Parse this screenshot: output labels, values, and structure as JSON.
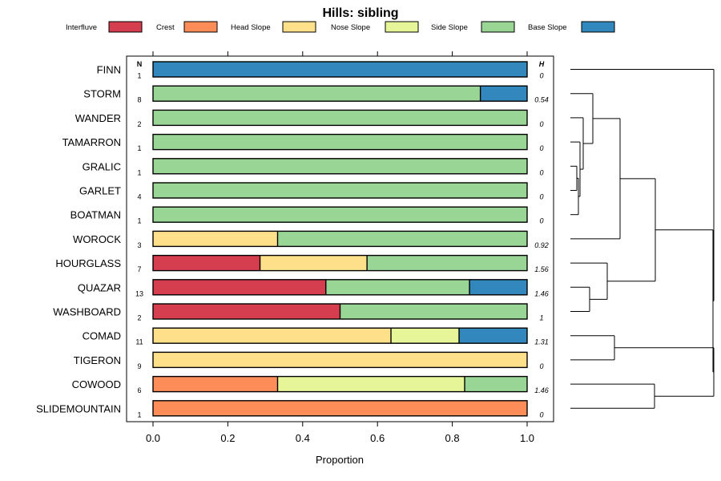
{
  "chart_data": {
    "type": "bar",
    "orientation": "horizontal",
    "stacked": true,
    "title": "Hills: sibling",
    "xlabel": "Proportion",
    "xlim": [
      0,
      1
    ],
    "x_ticks": [
      "0.0",
      "0.2",
      "0.4",
      "0.6",
      "0.8",
      "1.0"
    ],
    "n_header": "N",
    "h_header": "H",
    "legend": [
      {
        "name": "Interfluve",
        "color": "#d53e4f"
      },
      {
        "name": "Crest",
        "color": "#fc8d59"
      },
      {
        "name": "Head Slope",
        "color": "#fee08b"
      },
      {
        "name": "Nose Slope",
        "color": "#e6f598"
      },
      {
        "name": "Side Slope",
        "color": "#99d594"
      },
      {
        "name": "Base Slope",
        "color": "#3288bd"
      }
    ],
    "rows": [
      {
        "label": "FINN",
        "n": "1",
        "h": "0",
        "values": [
          0,
          0,
          0,
          0,
          0,
          1
        ]
      },
      {
        "label": "STORM",
        "n": "8",
        "h": "0.54",
        "values": [
          0,
          0,
          0,
          0,
          0.875,
          0.125
        ]
      },
      {
        "label": "WANDER",
        "n": "2",
        "h": "0",
        "values": [
          0,
          0,
          0,
          0,
          1,
          0
        ]
      },
      {
        "label": "TAMARRON",
        "n": "1",
        "h": "0",
        "values": [
          0,
          0,
          0,
          0,
          1,
          0
        ]
      },
      {
        "label": "GRALIC",
        "n": "1",
        "h": "0",
        "values": [
          0,
          0,
          0,
          0,
          1,
          0
        ]
      },
      {
        "label": "GARLET",
        "n": "4",
        "h": "0",
        "values": [
          0,
          0,
          0,
          0,
          1,
          0
        ]
      },
      {
        "label": "BOATMAN",
        "n": "1",
        "h": "0",
        "values": [
          0,
          0,
          0,
          0,
          1,
          0
        ]
      },
      {
        "label": "WOROCK",
        "n": "3",
        "h": "0.92",
        "values": [
          0,
          0,
          0.333,
          0,
          0.667,
          0
        ]
      },
      {
        "label": "HOURGLASS",
        "n": "7",
        "h": "1.56",
        "values": [
          0.286,
          0,
          0.286,
          0,
          0.428,
          0
        ]
      },
      {
        "label": "QUAZAR",
        "n": "13",
        "h": "1.46",
        "values": [
          0.462,
          0,
          0,
          0,
          0.384,
          0.154
        ]
      },
      {
        "label": "WASHBOARD",
        "n": "2",
        "h": "1",
        "values": [
          0.5,
          0,
          0,
          0,
          0.5,
          0
        ]
      },
      {
        "label": "COMAD",
        "n": "11",
        "h": "1.31",
        "values": [
          0,
          0,
          0.636,
          0.182,
          0,
          0.182
        ]
      },
      {
        "label": "TIGERON",
        "n": "9",
        "h": "0",
        "values": [
          0,
          0,
          1,
          0,
          0,
          0
        ]
      },
      {
        "label": "COWOOD",
        "n": "6",
        "h": "1.46",
        "values": [
          0,
          0.333,
          0,
          0.5,
          0.167,
          0
        ]
      },
      {
        "label": "SLIDEMOUNTAIN",
        "n": "1",
        "h": "0",
        "values": [
          0,
          1,
          0,
          0,
          0,
          0
        ]
      }
    ]
  }
}
